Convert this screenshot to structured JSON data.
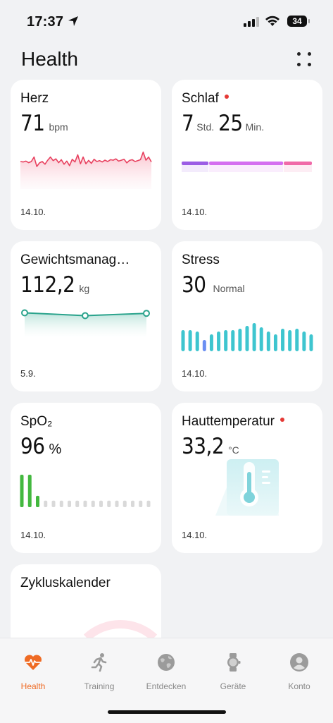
{
  "status_bar": {
    "time": "17:37",
    "battery": "34"
  },
  "header": {
    "title": "Health"
  },
  "cards": {
    "heart": {
      "label": "Herz",
      "value": "71",
      "unit": "bpm",
      "date": "14.10."
    },
    "sleep": {
      "label": "Schlaf",
      "hours": "7",
      "hours_unit": "Std.",
      "minutes": "25",
      "minutes_unit": "Min.",
      "date": "14.10."
    },
    "weight": {
      "label": "Gewichtsmanag…",
      "value": "112,2",
      "unit": "kg",
      "date": "5.9."
    },
    "stress": {
      "label": "Stress",
      "value": "30",
      "status": "Normal",
      "date": "14.10."
    },
    "spo2": {
      "label": "SpO₂",
      "value": "96",
      "unit": "%",
      "date": "14.10."
    },
    "skin_temp": {
      "label": "Hauttemperatur",
      "value": "33,2",
      "unit": "°C",
      "date": "14.10."
    },
    "cycle": {
      "label": "Zykluskalender"
    }
  },
  "charts": {
    "heart_line": [
      0.5,
      0.52,
      0.48,
      0.55,
      0.5,
      0.3,
      0.72,
      0.56,
      0.5,
      0.62,
      0.44,
      0.3,
      0.46,
      0.38,
      0.55,
      0.42,
      0.62,
      0.48,
      0.68,
      0.4,
      0.52,
      0.2,
      0.6,
      0.3,
      0.6,
      0.45,
      0.58,
      0.4,
      0.5,
      0.46,
      0.52,
      0.44,
      0.5,
      0.42,
      0.44,
      0.38,
      0.48,
      0.44,
      0.4,
      0.56,
      0.45,
      0.42,
      0.5,
      0.46,
      0.42,
      0.08,
      0.44,
      0.3,
      0.52
    ],
    "sleep_segments": [
      {
        "fraction": 0.21,
        "color": "#9b5de5"
      },
      {
        "fraction": 0.57,
        "color": "#d46ef0"
      },
      {
        "fraction": 0.22,
        "color": "#f06aa8"
      }
    ],
    "weight_points": [
      0.85,
      0.45,
      0.78
    ],
    "stress_levels": [
      0.75,
      0.75,
      0.7,
      0.4,
      0.6,
      0.7,
      0.75,
      0.75,
      0.8,
      0.9,
      1.0,
      0.85,
      0.7,
      0.6,
      0.8,
      0.75,
      0.8,
      0.7,
      0.6
    ],
    "stress_highlight_index": 3,
    "spo2_levels": [
      1.0,
      1.0,
      0.35,
      0.2,
      0.2,
      0.2,
      0.2,
      0.2,
      0.2,
      0.2,
      0.2,
      0.2,
      0.2,
      0.2,
      0.2,
      0.2,
      0.2
    ]
  },
  "colors": {
    "heart": "#e8415f",
    "weight": "#2aa38c",
    "stress": "#3ec5cf",
    "stress_alt": "#6b8ff2",
    "spo2": "#43b83f",
    "spo2_empty": "#d9d9d9",
    "accent": "#ef6b24"
  },
  "tabs": [
    {
      "label": "Health",
      "icon": "heart-pulse-icon",
      "active": true
    },
    {
      "label": "Training",
      "icon": "running-icon",
      "active": false
    },
    {
      "label": "Entdecken",
      "icon": "globe-icon",
      "active": false
    },
    {
      "label": "Geräte",
      "icon": "watch-icon",
      "active": false
    },
    {
      "label": "Konto",
      "icon": "account-icon",
      "active": false
    }
  ]
}
